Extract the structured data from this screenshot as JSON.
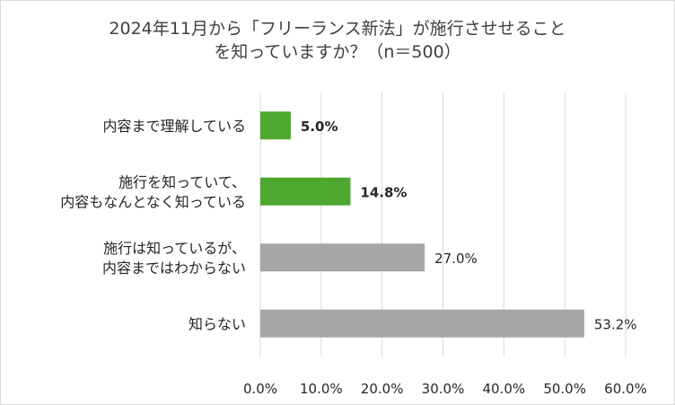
{
  "chart_data": {
    "type": "bar",
    "orientation": "horizontal",
    "title_lines": [
      "2024年11月から「フリーランス新法」が施行させせること",
      "を知っていますか？（n＝500）"
    ],
    "categories": [
      [
        "内容まで理解している"
      ],
      [
        "施行を知っていて、",
        "内容もなんとなく知っている"
      ],
      [
        "施行は知っているが、",
        "内容まではわからない"
      ],
      [
        "知らない"
      ]
    ],
    "values": [
      5.0,
      14.8,
      27.0,
      53.2
    ],
    "data_labels": [
      "5.0%",
      "14.8%",
      "27.0%",
      "53.2%"
    ],
    "bar_colors": [
      "#4ea72e",
      "#4ea72e",
      "#a6a6a6",
      "#a6a6a6"
    ],
    "bold_labels": [
      true,
      true,
      false,
      false
    ],
    "xlim": [
      0,
      60
    ],
    "x_ticks": [
      "0.0%",
      "10.0%",
      "20.0%",
      "30.0%",
      "40.0%",
      "50.0%",
      "60.0%"
    ],
    "grid": "vertical",
    "legend": "none"
  }
}
